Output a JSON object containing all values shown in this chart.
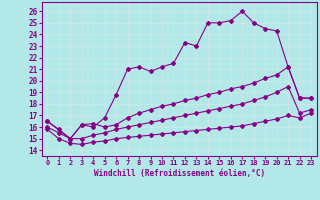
{
  "xlabel": "Windchill (Refroidissement éolien,°C)",
  "background_color": "#b2e8e8",
  "line_color": "#880088",
  "grid_color": "#c8e8e8",
  "x_ticks": [
    0,
    1,
    2,
    3,
    4,
    5,
    6,
    7,
    8,
    9,
    10,
    11,
    12,
    13,
    14,
    15,
    16,
    17,
    18,
    19,
    20,
    21,
    22,
    23
  ],
  "y_ticks": [
    14,
    15,
    16,
    17,
    18,
    19,
    20,
    21,
    22,
    23,
    24,
    25,
    26
  ],
  "xlim": [
    -0.5,
    23.5
  ],
  "ylim": [
    13.5,
    26.8
  ],
  "line1_x": [
    0,
    1,
    2,
    3,
    4,
    5,
    6,
    7,
    8,
    9,
    10,
    11,
    12,
    13,
    14,
    15,
    16,
    17,
    18,
    19,
    20,
    21,
    22,
    23
  ],
  "line1_y": [
    16.5,
    15.8,
    15.0,
    16.2,
    16.0,
    16.8,
    18.8,
    21.0,
    21.2,
    20.8,
    21.2,
    21.5,
    23.3,
    23.0,
    25.0,
    25.0,
    25.2,
    26.0,
    25.0,
    24.5,
    24.3,
    21.2,
    18.5,
    18.5
  ],
  "line2_x": [
    0,
    2,
    3,
    4,
    5,
    6,
    7,
    8,
    9,
    10,
    11,
    12,
    13,
    14,
    15,
    16,
    17,
    18,
    19,
    20,
    21,
    22,
    23
  ],
  "line2_y": [
    16.5,
    15.0,
    16.2,
    16.3,
    16.0,
    16.2,
    16.8,
    17.2,
    17.5,
    17.8,
    18.0,
    18.3,
    18.5,
    18.8,
    19.0,
    19.3,
    19.5,
    19.8,
    20.2,
    20.5,
    21.2,
    18.5,
    18.5
  ],
  "line3_x": [
    0,
    1,
    2,
    3,
    4,
    5,
    6,
    7,
    8,
    9,
    10,
    11,
    12,
    13,
    14,
    15,
    16,
    17,
    18,
    19,
    20,
    21,
    22,
    23
  ],
  "line3_y": [
    16.0,
    15.5,
    15.0,
    15.0,
    15.3,
    15.5,
    15.8,
    16.0,
    16.2,
    16.4,
    16.6,
    16.8,
    17.0,
    17.2,
    17.4,
    17.6,
    17.8,
    18.0,
    18.3,
    18.6,
    19.0,
    19.5,
    17.2,
    17.5
  ],
  "line4_x": [
    0,
    1,
    2,
    3,
    4,
    5,
    6,
    7,
    8,
    9,
    10,
    11,
    12,
    13,
    14,
    15,
    16,
    17,
    18,
    19,
    20,
    21,
    22,
    23
  ],
  "line4_y": [
    15.8,
    15.0,
    14.6,
    14.5,
    14.7,
    14.8,
    15.0,
    15.1,
    15.2,
    15.3,
    15.4,
    15.5,
    15.6,
    15.7,
    15.8,
    15.9,
    16.0,
    16.1,
    16.3,
    16.5,
    16.7,
    17.0,
    16.8,
    17.2
  ]
}
